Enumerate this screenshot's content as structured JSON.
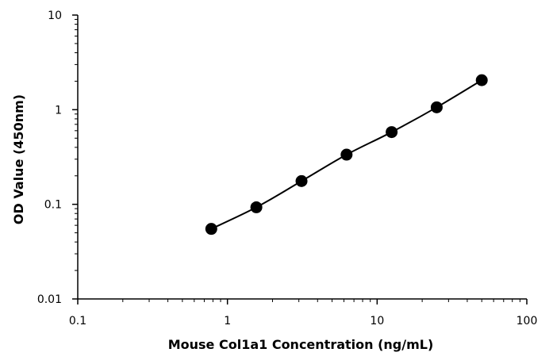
{
  "chart_data": {
    "type": "scatter",
    "title": "",
    "xlabel": "Mouse Col1a1 Concentration (ng/mL)",
    "ylabel": "OD Value (450nm)",
    "x_scale": "log",
    "y_scale": "log",
    "xlim": [
      0.1,
      100
    ],
    "ylim": [
      0.01,
      10
    ],
    "x_ticks": [
      0.1,
      1,
      10,
      100
    ],
    "x_tick_labels": [
      "0.1",
      "1",
      "10",
      "100"
    ],
    "y_ticks": [
      0.01,
      0.1,
      1,
      10
    ],
    "y_tick_labels": [
      "0.01",
      "0.1",
      "1",
      "10"
    ],
    "grid": false,
    "legend": "none",
    "series": [
      {
        "x": [
          0.78,
          1.56,
          3.125,
          6.25,
          12.5,
          25,
          50
        ],
        "y": [
          0.055,
          0.093,
          0.176,
          0.335,
          0.58,
          1.06,
          2.05
        ],
        "marker": "circle",
        "line": "smooth",
        "color": "#000000"
      }
    ]
  }
}
